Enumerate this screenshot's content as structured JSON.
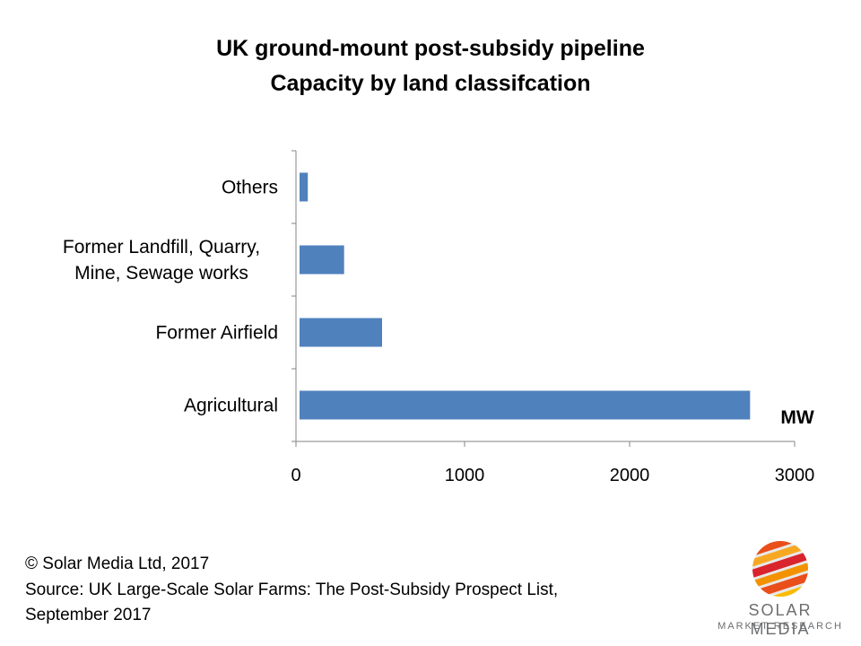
{
  "chart_data": {
    "type": "bar",
    "orientation": "horizontal",
    "title": "UK ground-mount post-subsidy pipeline",
    "subtitle": "Capacity by  land classifcation",
    "categories": [
      "Agricultural",
      "Former Airfield",
      "Former Landfill, Quarry, Mine, Sewage works",
      "Others"
    ],
    "category_label_lines": [
      [
        "Agricultural"
      ],
      [
        "Former Airfield"
      ],
      [
        "Former Landfill, Quarry,",
        "Mine, Sewage works"
      ],
      [
        "Others"
      ]
    ],
    "values": [
      2730,
      500,
      270,
      50
    ],
    "unit_label": "MW",
    "xlim": [
      0,
      3000
    ],
    "xticks": [
      "0",
      "1000",
      "2000",
      "3000"
    ],
    "color": "#4f81bd",
    "grid": false,
    "legend": "none"
  },
  "footer": {
    "copyright": "© Solar Media Ltd, 2017",
    "source_line1": "Source: UK Large-Scale Solar Farms: The Post-Subsidy Prospect List,",
    "source_line2": "September 2017"
  },
  "logo": {
    "name": "SOLAR MEDIA",
    "subtitle": "MARKET RESEARCH",
    "icon": "striped-sphere-icon"
  }
}
